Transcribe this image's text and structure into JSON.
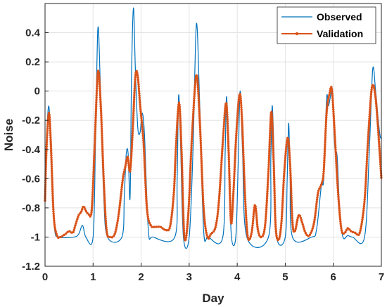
{
  "chart_data": {
    "type": "line",
    "title": "",
    "xlabel": "Day",
    "ylabel": "Noise",
    "xlim": [
      0,
      7
    ],
    "ylim": [
      -1.2,
      0.6
    ],
    "x_ticks": [
      "0",
      "1",
      "2",
      "3",
      "4",
      "5",
      "6",
      "7"
    ],
    "y_ticks": [
      "-1.2",
      "-1",
      "-0.8",
      "-0.6",
      "-0.4",
      "-0.2",
      "0",
      "0.2",
      "0.4"
    ],
    "grid": true,
    "legend_position": "top-right",
    "series": [
      {
        "name": "Observed",
        "color": "#0072BD",
        "marker": "none",
        "points": [
          [
            0,
            -0.72
          ],
          [
            0.03,
            -0.35
          ],
          [
            0.07,
            -0.11
          ],
          [
            0.1,
            -0.2
          ],
          [
            0.14,
            -0.6
          ],
          [
            0.2,
            -0.95
          ],
          [
            0.3,
            -1.0
          ],
          [
            0.6,
            -1.0
          ],
          [
            0.7,
            -0.98
          ],
          [
            0.78,
            -0.92
          ],
          [
            0.85,
            -1.0
          ],
          [
            1.0,
            -1.0
          ],
          [
            1.05,
            -0.35
          ],
          [
            1.1,
            0.43
          ],
          [
            1.15,
            0.05
          ],
          [
            1.22,
            -0.7
          ],
          [
            1.3,
            -1.0
          ],
          [
            1.6,
            -1.0
          ],
          [
            1.65,
            -0.72
          ],
          [
            1.69,
            -0.43
          ],
          [
            1.73,
            -0.43
          ],
          [
            1.77,
            -0.73
          ],
          [
            1.8,
            0.1
          ],
          [
            1.84,
            0.57
          ],
          [
            1.88,
            0.15
          ],
          [
            1.93,
            -0.25
          ],
          [
            1.98,
            -0.28
          ],
          [
            2.02,
            -0.15
          ],
          [
            2.07,
            -0.3
          ],
          [
            2.15,
            -0.95
          ],
          [
            2.25,
            -1.0
          ],
          [
            2.7,
            -1.0
          ],
          [
            2.75,
            -0.6
          ],
          [
            2.78,
            -0.03
          ],
          [
            2.82,
            -0.35
          ],
          [
            2.88,
            -1.0
          ],
          [
            3.0,
            -1.0
          ],
          [
            3.08,
            -0.4
          ],
          [
            3.15,
            0.46
          ],
          [
            3.22,
            -0.1
          ],
          [
            3.3,
            -0.95
          ],
          [
            3.4,
            -1.0
          ],
          [
            3.7,
            -1.0
          ],
          [
            3.75,
            -0.4
          ],
          [
            3.78,
            -0.04
          ],
          [
            3.83,
            -0.55
          ],
          [
            3.88,
            -1.0
          ],
          [
            3.97,
            -1.0
          ],
          [
            4.02,
            -0.5
          ],
          [
            4.06,
            0.0
          ],
          [
            4.11,
            -0.4
          ],
          [
            4.2,
            -1.0
          ],
          [
            4.65,
            -1.0
          ],
          [
            4.7,
            -0.45
          ],
          [
            4.73,
            -0.1
          ],
          [
            4.77,
            -0.5
          ],
          [
            4.82,
            -1.0
          ],
          [
            5.0,
            -1.0
          ],
          [
            5.04,
            -0.6
          ],
          [
            5.07,
            -0.22
          ],
          [
            5.1,
            -0.55
          ],
          [
            5.15,
            -1.0
          ],
          [
            5.55,
            -1.0
          ],
          [
            5.65,
            -0.95
          ],
          [
            5.75,
            -0.65
          ],
          [
            5.8,
            -0.6
          ],
          [
            5.86,
            -0.05
          ],
          [
            5.9,
            -0.1
          ],
          [
            5.95,
            -0.02
          ],
          [
            5.98,
            0.0
          ],
          [
            6.03,
            -0.38
          ],
          [
            6.08,
            -0.45
          ],
          [
            6.13,
            -0.8
          ],
          [
            6.2,
            -1.0
          ],
          [
            6.3,
            -0.99
          ],
          [
            6.4,
            -1.0
          ],
          [
            6.65,
            -1.0
          ],
          [
            6.75,
            -0.4
          ],
          [
            6.82,
            0.15
          ],
          [
            6.88,
            0.0
          ],
          [
            6.93,
            -0.18
          ],
          [
            6.97,
            -0.3
          ],
          [
            7.0,
            -0.33
          ]
        ]
      },
      {
        "name": "Validation",
        "color": "#D95319",
        "marker": "dot",
        "points": [
          [
            0,
            -0.75
          ],
          [
            0.03,
            -0.4
          ],
          [
            0.08,
            -0.15
          ],
          [
            0.12,
            -0.35
          ],
          [
            0.18,
            -0.85
          ],
          [
            0.25,
            -0.99
          ],
          [
            0.32,
            -1.0
          ],
          [
            0.42,
            -0.98
          ],
          [
            0.5,
            -0.96
          ],
          [
            0.58,
            -0.97
          ],
          [
            0.63,
            -0.92
          ],
          [
            0.7,
            -0.85
          ],
          [
            0.75,
            -0.83
          ],
          [
            0.8,
            -0.79
          ],
          [
            0.85,
            -0.82
          ],
          [
            0.9,
            -0.84
          ],
          [
            0.97,
            -0.82
          ],
          [
            1.03,
            -0.4
          ],
          [
            1.1,
            0.13
          ],
          [
            1.16,
            -0.1
          ],
          [
            1.22,
            -0.6
          ],
          [
            1.28,
            -0.95
          ],
          [
            1.35,
            -1.0
          ],
          [
            1.45,
            -0.98
          ],
          [
            1.53,
            -0.85
          ],
          [
            1.62,
            -0.6
          ],
          [
            1.67,
            -0.52
          ],
          [
            1.72,
            -0.45
          ],
          [
            1.77,
            -0.55
          ],
          [
            1.82,
            -0.3
          ],
          [
            1.88,
            0.1
          ],
          [
            1.93,
            0.1
          ],
          [
            1.98,
            -0.1
          ],
          [
            2.05,
            -0.35
          ],
          [
            2.12,
            -0.8
          ],
          [
            2.2,
            -0.92
          ],
          [
            2.3,
            -0.93
          ],
          [
            2.4,
            -0.93
          ],
          [
            2.5,
            -0.95
          ],
          [
            2.6,
            -0.93
          ],
          [
            2.68,
            -0.7
          ],
          [
            2.73,
            -0.35
          ],
          [
            2.79,
            -0.08
          ],
          [
            2.84,
            -0.4
          ],
          [
            2.9,
            -1.0
          ],
          [
            2.98,
            -0.85
          ],
          [
            3.06,
            -0.3
          ],
          [
            3.15,
            0.11
          ],
          [
            3.22,
            -0.2
          ],
          [
            3.3,
            -0.8
          ],
          [
            3.38,
            -1.0
          ],
          [
            3.45,
            -0.98
          ],
          [
            3.55,
            -0.93
          ],
          [
            3.62,
            -0.75
          ],
          [
            3.7,
            -0.35
          ],
          [
            3.77,
            -0.08
          ],
          [
            3.82,
            -0.4
          ],
          [
            3.87,
            -0.9
          ],
          [
            3.92,
            -0.7
          ],
          [
            3.98,
            -0.3
          ],
          [
            4.05,
            -0.02
          ],
          [
            4.1,
            -0.2
          ],
          [
            4.16,
            -0.7
          ],
          [
            4.22,
            -1.0
          ],
          [
            4.3,
            -0.97
          ],
          [
            4.37,
            -0.78
          ],
          [
            4.43,
            -0.95
          ],
          [
            4.5,
            -1.0
          ],
          [
            4.58,
            -0.92
          ],
          [
            4.65,
            -0.55
          ],
          [
            4.71,
            -0.14
          ],
          [
            4.76,
            -0.5
          ],
          [
            4.8,
            -0.93
          ],
          [
            4.86,
            -1.02
          ],
          [
            4.92,
            -0.9
          ],
          [
            4.98,
            -0.55
          ],
          [
            5.05,
            -0.32
          ],
          [
            5.1,
            -0.5
          ],
          [
            5.15,
            -0.9
          ],
          [
            5.2,
            -0.96
          ],
          [
            5.28,
            -0.85
          ],
          [
            5.35,
            -0.9
          ],
          [
            5.42,
            -0.97
          ],
          [
            5.5,
            -0.99
          ],
          [
            5.6,
            -0.9
          ],
          [
            5.68,
            -0.7
          ],
          [
            5.75,
            -0.64
          ],
          [
            5.8,
            -0.55
          ],
          [
            5.86,
            -0.15
          ],
          [
            5.92,
            -0.02
          ],
          [
            5.97,
            0.01
          ],
          [
            6.03,
            -0.3
          ],
          [
            6.1,
            -0.7
          ],
          [
            6.17,
            -0.95
          ],
          [
            6.24,
            -0.97
          ],
          [
            6.3,
            -0.94
          ],
          [
            6.37,
            -0.96
          ],
          [
            6.45,
            -0.97
          ],
          [
            6.55,
            -0.97
          ],
          [
            6.65,
            -0.75
          ],
          [
            6.72,
            -0.35
          ],
          [
            6.8,
            0.02
          ],
          [
            6.87,
            -0.02
          ],
          [
            6.93,
            -0.25
          ],
          [
            7.0,
            -0.6
          ]
        ]
      }
    ]
  }
}
